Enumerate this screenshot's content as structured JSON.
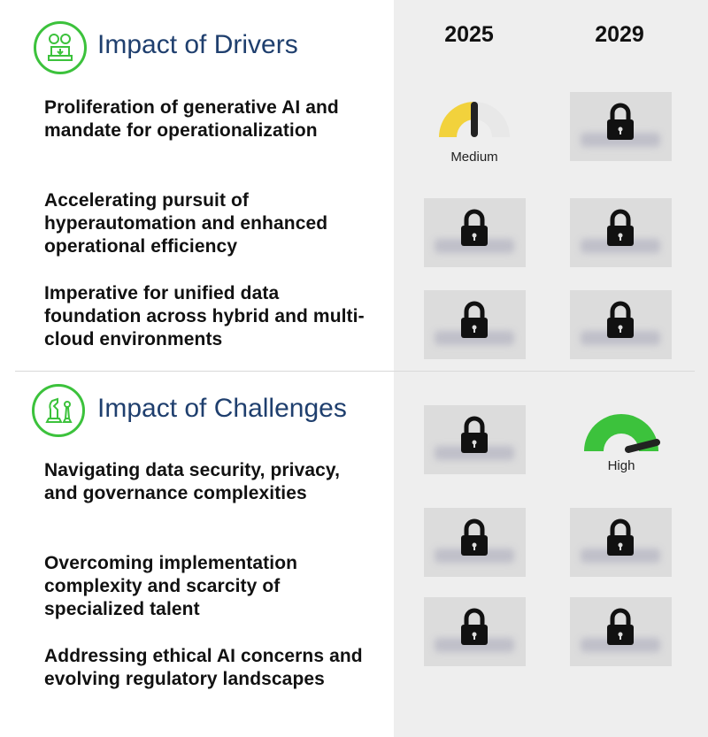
{
  "columns": {
    "year_2025": "2025",
    "year_2029": "2029"
  },
  "drivers": {
    "title": "Impact of Drivers",
    "icon": "gears-icon",
    "items": [
      {
        "text": "Proliferation of generative AI and mandate for operationalization",
        "y2025": "Medium",
        "y2029": "locked"
      },
      {
        "text": "Accelerating pursuit of hyperautomation and enhanced operational efficiency",
        "y2025": "locked",
        "y2029": "locked"
      },
      {
        "text": "Imperative for unified data foundation across hybrid and multi-cloud environments",
        "y2025": "locked",
        "y2029": "locked"
      }
    ]
  },
  "challenges": {
    "title": "Impact of Challenges",
    "icon": "chess-icon",
    "items": [
      {
        "text": "Navigating data security, privacy, and governance complexities",
        "y2025": "locked",
        "y2029": "High"
      },
      {
        "text": "Overcoming implementation complexity and scarcity of specialized talent",
        "y2025": "locked",
        "y2029": "locked"
      },
      {
        "text": "Addressing ethical AI concerns and evolving regulatory landscapes",
        "y2025": "locked",
        "y2029": "locked"
      }
    ]
  },
  "gauges": {
    "medium": {
      "label": "Medium",
      "level": 0.5,
      "color": "#f2d23c"
    },
    "high": {
      "label": "High",
      "level": 0.85,
      "color": "#3cc23c"
    }
  },
  "colors": {
    "accent_green": "#3cc23c",
    "title_blue": "#1f3f6e",
    "panel_gray": "#eeeeee"
  }
}
